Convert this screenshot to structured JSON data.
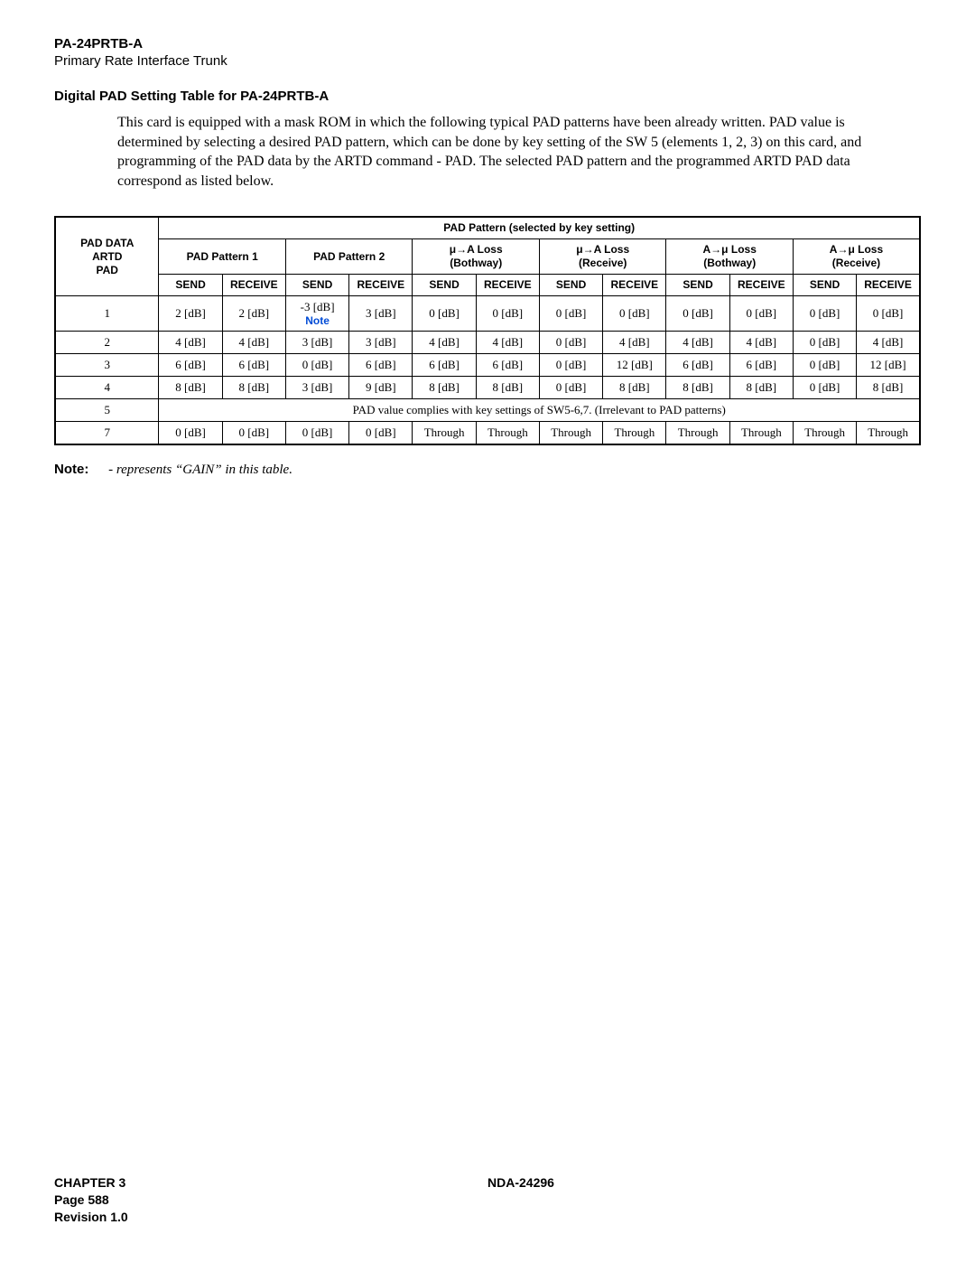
{
  "header": {
    "code": "PA-24PRTB-A",
    "subtitle": "Primary Rate Interface Trunk"
  },
  "section_title": "Digital PAD Setting Table for PA-24PRTB-A",
  "paragraph": "This card is equipped with a mask ROM in which the following typical PAD patterns have been already written. PAD value is determined by selecting a desired PAD pattern, which can be done by key setting of the SW 5 (elements 1, 2, 3) on this card, and programming of the PAD data by the ARTD command - PAD. The selected PAD pattern and the programmed ARTD PAD data correspond as listed below.",
  "table": {
    "top_header": "PAD Pattern (selected by key setting)",
    "row_header": "PAD DATA\nARTD\nPAD",
    "groups": [
      "PAD Pattern 1",
      "PAD Pattern 2",
      "μ→A Loss\n(Bothway)",
      "μ→A Loss\n(Receive)",
      "A→μ Loss\n(Bothway)",
      "A→μ Loss\n(Receive)"
    ],
    "sub": {
      "send": "SEND",
      "receive": "RECEIVE"
    },
    "note_cell": {
      "value": "-3 [dB]",
      "label": "Note"
    },
    "rows": [
      {
        "id": "1",
        "cells": [
          "2 [dB]",
          "2 [dB]",
          "NOTE",
          "3 [dB]",
          "0 [dB]",
          "0 [dB]",
          "0 [dB]",
          "0 [dB]",
          "0 [dB]",
          "0 [dB]",
          "0 [dB]",
          "0 [dB]"
        ]
      },
      {
        "id": "2",
        "cells": [
          "4 [dB]",
          "4 [dB]",
          "3 [dB]",
          "3 [dB]",
          "4 [dB]",
          "4 [dB]",
          "0 [dB]",
          "4 [dB]",
          "4 [dB]",
          "4 [dB]",
          "0 [dB]",
          "4 [dB]"
        ]
      },
      {
        "id": "3",
        "cells": [
          "6 [dB]",
          "6 [dB]",
          "0 [dB]",
          "6 [dB]",
          "6 [dB]",
          "6 [dB]",
          "0 [dB]",
          "12 [dB]",
          "6 [dB]",
          "6 [dB]",
          "0 [dB]",
          "12 [dB]"
        ]
      },
      {
        "id": "4",
        "cells": [
          "8 [dB]",
          "8 [dB]",
          "3 [dB]",
          "9 [dB]",
          "8 [dB]",
          "8 [dB]",
          "0 [dB]",
          "8 [dB]",
          "8 [dB]",
          "8 [dB]",
          "0 [dB]",
          "8 [dB]"
        ]
      },
      {
        "id": "5",
        "span": "PAD value complies with key settings of SW5-6,7. (Irrelevant to PAD patterns)"
      },
      {
        "id": "7",
        "cells": [
          "0 [dB]",
          "0 [dB]",
          "0 [dB]",
          "0 [dB]",
          "Through",
          "Through",
          "Through",
          "Through",
          "Through",
          "Through",
          "Through",
          "Through"
        ]
      }
    ]
  },
  "note": {
    "label": "Note:",
    "text": "- represents “GAIN” in this table."
  },
  "footer": {
    "chapter": "CHAPTER 3",
    "page": "Page 588",
    "revision": "Revision 1.0",
    "doc": "NDA-24296"
  }
}
